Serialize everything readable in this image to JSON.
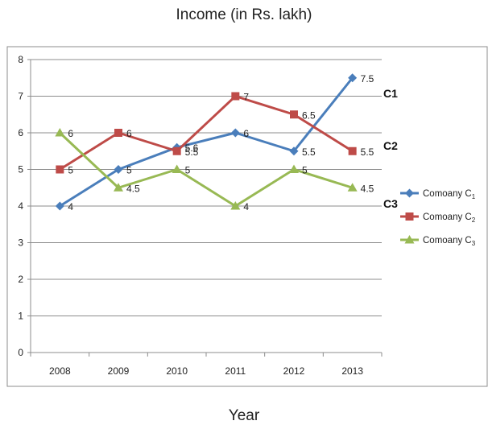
{
  "chart_data": {
    "type": "line",
    "title": "Income (in Rs. lakh)",
    "xlabel": "Year",
    "ylabel": "",
    "categories": [
      "2008",
      "2009",
      "2010",
      "2011",
      "2012",
      "2013"
    ],
    "ylim": [
      0,
      8
    ],
    "yticks": [
      "0",
      "1",
      "2",
      "3",
      "4",
      "5",
      "6",
      "7",
      "8"
    ],
    "grid": true,
    "legend_position": "right",
    "series": [
      {
        "name": "Comoany C1",
        "name_main": "Comoany C",
        "name_sub": "1",
        "tag": "C1",
        "values": [
          4,
          5,
          5.6,
          6,
          5.5,
          7.5
        ],
        "labels": [
          "4",
          "5",
          "5.6",
          "6",
          "5.5",
          "7.5"
        ],
        "color": "#4a7ebb",
        "marker": "diamond"
      },
      {
        "name": "Comoany C2",
        "name_main": "Comoany C",
        "name_sub": "2",
        "tag": "C2",
        "values": [
          5,
          6,
          5.5,
          7,
          6.5,
          5.5
        ],
        "labels": [
          "5",
          "6",
          "5.5",
          "7",
          "6.5",
          "5.5"
        ],
        "color": "#be4b48",
        "marker": "square"
      },
      {
        "name": "Comoany C3",
        "name_main": "Comoany C",
        "name_sub": "3",
        "tag": "C3",
        "values": [
          6,
          4.5,
          5,
          4,
          5,
          4.5
        ],
        "labels": [
          "6",
          "4.5",
          "5",
          "4",
          "5",
          "4.5"
        ],
        "color": "#98b954",
        "marker": "triangle"
      }
    ]
  }
}
